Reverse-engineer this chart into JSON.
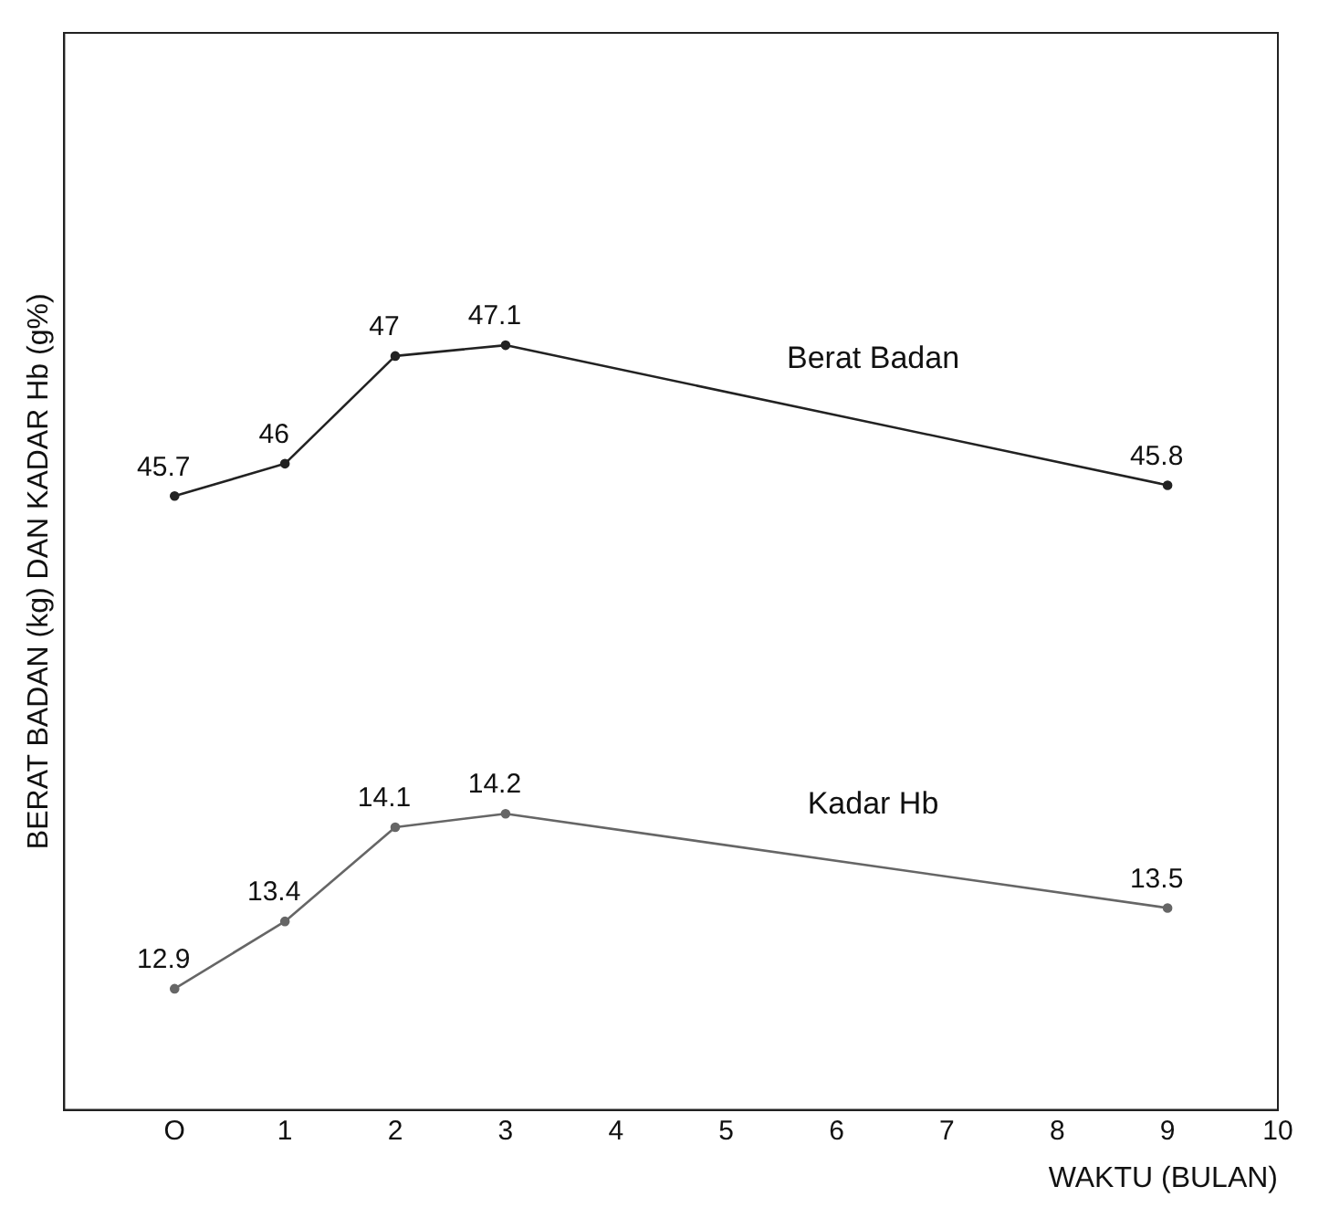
{
  "chart_data": {
    "type": "line",
    "xlabel": "WAKTU (BULAN)",
    "ylabel": "BERAT BADAN (kg) DAN KADAR Hb (g%)",
    "x": [
      0,
      1,
      2,
      3,
      9
    ],
    "series": [
      {
        "name": "Berat Badan",
        "color": "#222222",
        "values": [
          45.7,
          46,
          47,
          47.1,
          45.8
        ]
      },
      {
        "name": "Kadar Hb",
        "color": "#666666",
        "values": [
          12.9,
          13.4,
          14.1,
          14.2,
          13.5
        ],
        "axis": "y2"
      }
    ],
    "xlim": [
      -1,
      10
    ],
    "xticks": [
      {
        "value": 0,
        "label": "O"
      },
      1,
      2,
      3,
      4,
      5,
      6,
      7,
      8,
      9,
      10
    ],
    "ylim": [
      40,
      50
    ],
    "y2lim": [
      12,
      20
    ],
    "tick_labels": "x",
    "data_labels": true,
    "grid": false,
    "legend": false,
    "marker": "circle",
    "line_style": "solid"
  }
}
